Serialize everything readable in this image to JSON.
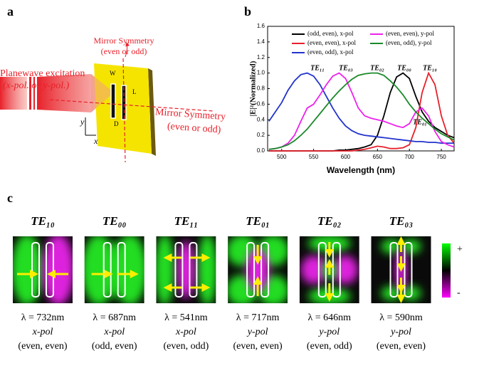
{
  "panel_labels": [
    "a",
    "b",
    "c"
  ],
  "diagram": {
    "excitation": [
      "Planewave excitation",
      "(x-pol. or y-pol.)"
    ],
    "mirror_vertical": [
      "Mirror Symmetry",
      "(even or odd)"
    ],
    "mirror_horizontal": [
      "Mirror Symmetry",
      "(even or odd)"
    ],
    "dimensions": [
      "W",
      "L",
      "D"
    ],
    "axes": [
      "y",
      "x"
    ]
  },
  "chart_data": {
    "type": "line",
    "x_label": "Wavelength (nm)",
    "y_label": "|E|²(Normalized)",
    "x": [
      480,
      490,
      500,
      510,
      520,
      530,
      540,
      550,
      560,
      570,
      580,
      590,
      600,
      610,
      620,
      630,
      640,
      650,
      660,
      670,
      680,
      690,
      700,
      710,
      720,
      730,
      740,
      750,
      760,
      770
    ],
    "xlim": [
      478,
      770
    ],
    "xticks": [
      500,
      550,
      600,
      650,
      700,
      750
    ],
    "ylim": [
      0,
      1.6
    ],
    "yticks": [
      {
        "value": 0,
        "label": "0.0"
      },
      0.2,
      0.4,
      0.6,
      0.8,
      {
        "value": 1,
        "label": "1.0"
      },
      1.2,
      1.4,
      1.6
    ],
    "series": [
      {
        "name": "(odd, even), x-pol",
        "color": "#000000",
        "values": [
          0,
          0,
          0,
          0,
          0,
          0,
          0,
          0,
          0,
          0,
          0,
          0.01,
          0.01,
          0.02,
          0.03,
          0.05,
          0.08,
          0.2,
          0.45,
          0.75,
          0.95,
          1.0,
          0.93,
          0.7,
          0.5,
          0.38,
          0.3,
          0.25,
          0.2,
          0.17
        ]
      },
      {
        "name": "(even, even), x-pol",
        "color": "#e8202a",
        "values": [
          0,
          0,
          0,
          0,
          0,
          0,
          0,
          0,
          0,
          0,
          0,
          0,
          0,
          0,
          0.01,
          0.02,
          0.04,
          0.06,
          0.05,
          0.03,
          0.03,
          0.04,
          0.08,
          0.3,
          0.75,
          1.0,
          0.85,
          0.45,
          0.2,
          0.1
        ]
      },
      {
        "name": "(even, odd), x-pol",
        "color": "#2233cc",
        "values": [
          0.38,
          0.5,
          0.62,
          0.78,
          0.9,
          0.98,
          1.0,
          0.96,
          0.85,
          0.7,
          0.55,
          0.42,
          0.32,
          0.26,
          0.22,
          0.2,
          0.19,
          0.18,
          0.17,
          0.16,
          0.15,
          0.14,
          0.13,
          0.12,
          0.12,
          0.11,
          0.11,
          0.1,
          0.1,
          0.1
        ]
      },
      {
        "name": "(even, even), y-pol",
        "color": "#ee22ee",
        "values": [
          0.02,
          0.03,
          0.05,
          0.1,
          0.2,
          0.38,
          0.55,
          0.6,
          0.72,
          0.85,
          0.96,
          1.0,
          0.93,
          0.75,
          0.55,
          0.45,
          0.42,
          0.4,
          0.38,
          0.35,
          0.32,
          0.3,
          0.35,
          0.5,
          0.55,
          0.45,
          0.25,
          0.12,
          0.08,
          0.05
        ]
      },
      {
        "name": "(even, odd), y-pol",
        "color": "#1a8a2a",
        "values": [
          0.02,
          0.03,
          0.05,
          0.08,
          0.13,
          0.2,
          0.28,
          0.38,
          0.48,
          0.58,
          0.68,
          0.77,
          0.85,
          0.92,
          0.97,
          0.99,
          1.0,
          1.0,
          0.97,
          0.9,
          0.82,
          0.72,
          0.6,
          0.5,
          0.42,
          0.35,
          0.28,
          0.22,
          0.18,
          0.14
        ]
      }
    ],
    "annotations": [
      "TE₁₁",
      "TE₀₃",
      "TE₀₂",
      "TE₀₀",
      "TE₁₀",
      "TE₀₁"
    ]
  },
  "modes": [
    {
      "name": "TE₁₀",
      "wavelength": "λ = 732nm",
      "polarization": "x-pol",
      "symmetry": "(even, even)"
    },
    {
      "name": "TE₀₀",
      "wavelength": "λ = 687nm",
      "polarization": "x-pol",
      "symmetry": "(odd, even)"
    },
    {
      "name": "TE₁₁",
      "wavelength": "λ = 541nm",
      "polarization": "x-pol",
      "symmetry": "(even, odd)"
    },
    {
      "name": "TE₀₁",
      "wavelength": "λ = 717nm",
      "polarization": "y-pol",
      "symmetry": "(even, even)"
    },
    {
      "name": "TE₀₂",
      "wavelength": "λ = 646nm",
      "polarization": "y-pol",
      "symmetry": "(even, odd)"
    },
    {
      "name": "TE₀₃",
      "wavelength": "λ = 590nm",
      "polarization": "y-pol",
      "symmetry": "(even, even)"
    }
  ],
  "colorbar": [
    "+",
    "-"
  ]
}
